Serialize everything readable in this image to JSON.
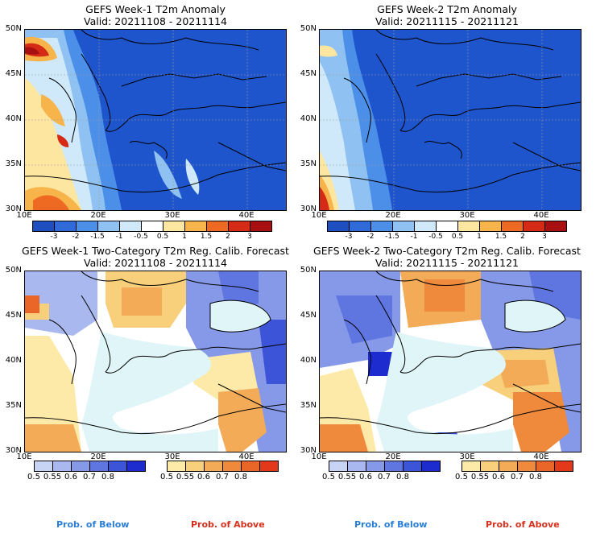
{
  "panels": [
    {
      "title1": "GEFS Week-1 T2m Anomaly",
      "title2": "Valid: 20211108 - 20211114"
    },
    {
      "title1": "GEFS Week-2 T2m Anomaly",
      "title2": "Valid: 20211115 - 20211121"
    },
    {
      "title1": "GEFS Week-1 Two-Category T2m Reg. Calib. Forecast",
      "title2": "Valid: 20211108 - 20211114"
    },
    {
      "title1": "GEFS Week-2 Two-Category T2m Reg. Calib. Forecast",
      "title2": "Valid: 20211115 - 20211121"
    }
  ],
  "map": {
    "lat_labels": [
      "50N",
      "45N",
      "40N",
      "35N",
      "30N"
    ],
    "lon_labels": [
      "10E",
      "20E",
      "30E",
      "40E"
    ],
    "water_color": "#dff5f8"
  },
  "anomaly_colorbar": {
    "labels": [
      "-3",
      "-2",
      "-1.5",
      "-1",
      "-0.5",
      "0.5",
      "1",
      "1.5",
      "2",
      "3"
    ],
    "colors": [
      "#1f4ec0",
      "#2f6ad8",
      "#4c8fe8",
      "#8fc2f2",
      "#cfe9fb",
      "#ffffff",
      "#fde6a0",
      "#f6b44a",
      "#ee6a22",
      "#d42a16",
      "#a80f10"
    ]
  },
  "prob_below_colorbar": {
    "labels": [
      "0.5",
      "0.55",
      "0.6",
      "0.7",
      "0.8"
    ],
    "colors": [
      "#c8d4f4",
      "#a9b9ef",
      "#8599e8",
      "#5f76e0",
      "#3c54d8",
      "#1c2ccf"
    ]
  },
  "prob_above_colorbar": {
    "labels": [
      "0.5",
      "0.55",
      "0.6",
      "0.7",
      "0.8"
    ],
    "colors": [
      "#fdeaa8",
      "#f8cf7a",
      "#f3ab58",
      "#ef8a3c",
      "#ea6628",
      "#e3381a"
    ]
  },
  "footer": {
    "below_label": "Prob. of Below",
    "above_label": "Prob. of Above",
    "below_color": "#2a7fd4",
    "above_color": "#d8301c"
  }
}
